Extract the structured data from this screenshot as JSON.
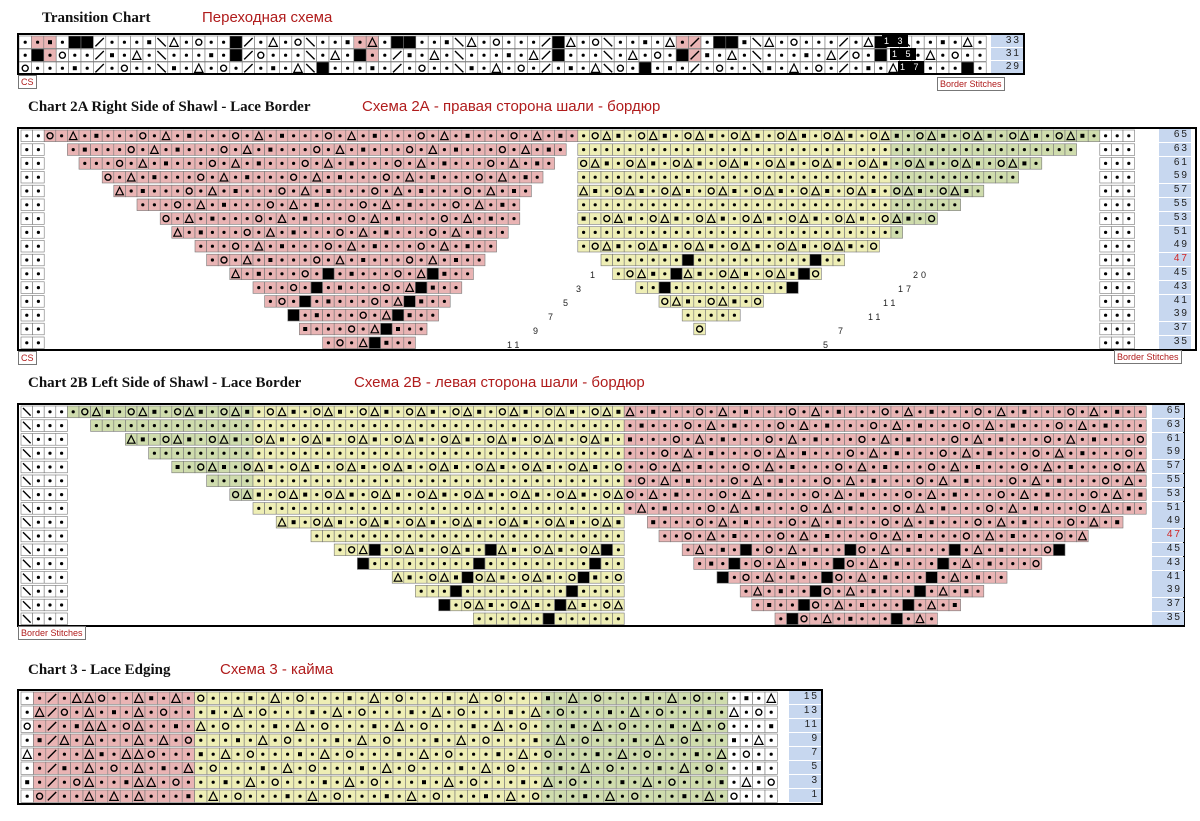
{
  "transition": {
    "title_en": "Transition Chart",
    "title_ru": "Переходная схема",
    "cs_label": "CS",
    "border_label": "Border Stitches",
    "row_numbers": [
      "33",
      "31",
      "29"
    ],
    "side_numbers": [
      "1 3",
      "1 5",
      "1 7"
    ]
  },
  "chart2a": {
    "title_en": "Chart 2A Right Side of Shawl - Lace Border",
    "title_ru": "Схема 2А - правая сторона шали - бордюр",
    "cs_label": "CS",
    "border_label": "Border Stitches",
    "row_numbers": [
      "65",
      "63",
      "61",
      "59",
      "57",
      "55",
      "53",
      "51",
      "49",
      "47",
      "45",
      "43",
      "41",
      "39",
      "37",
      "35"
    ],
    "highlight_row": "47",
    "wedge_numbers": [
      "1",
      "3",
      "5",
      "7",
      "9",
      "11",
      "20",
      "17",
      "11",
      "11",
      "7",
      "5"
    ]
  },
  "chart2b": {
    "title_en": "Chart 2B Left Side of Shawl - Lace Border",
    "title_ru": "Схема 2В - левая сторона шали - бордюр",
    "border_label": "Border Stitches",
    "row_numbers": [
      "65",
      "63",
      "61",
      "59",
      "57",
      "55",
      "53",
      "51",
      "49",
      "47",
      "45",
      "43",
      "41",
      "39",
      "37",
      "35"
    ],
    "highlight_row": "47"
  },
  "chart3": {
    "title_en": "Chart 3 - Lace Edging",
    "title_ru": "Схема 3 - кайма",
    "row_numbers": [
      "15",
      "13",
      "11",
      "9",
      "7",
      "5",
      "3",
      "1"
    ]
  },
  "colors": {
    "pink": "#e9b4b4",
    "yellow": "#eeeeb5",
    "green": "#cfdcad",
    "rownum_bg": "#c7d7ef",
    "black": "#000000",
    "title_red": "#b01c1c"
  },
  "symbols": [
    "dot",
    "ring",
    "triangle",
    "square",
    "slash",
    "backslash",
    "black"
  ]
}
